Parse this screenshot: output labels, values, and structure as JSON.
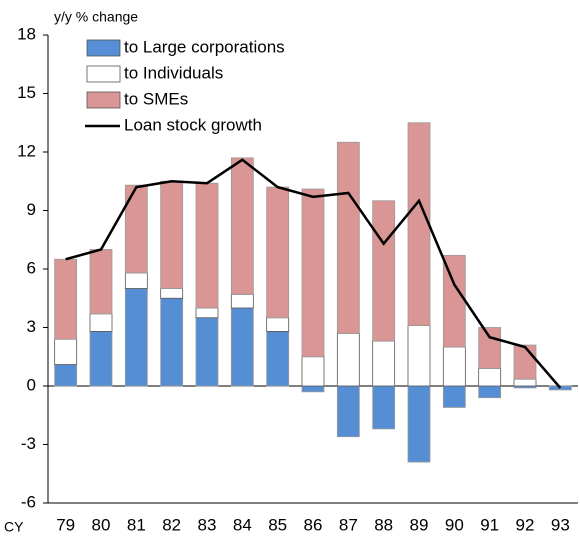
{
  "chart_data": {
    "type": "bar",
    "stacked": true,
    "y_label": "y/y % change",
    "x_label": "CY",
    "categories": [
      "79",
      "80",
      "81",
      "82",
      "83",
      "84",
      "85",
      "86",
      "87",
      "88",
      "89",
      "90",
      "91",
      "92",
      "93"
    ],
    "series": [
      {
        "name": "to Large corporations",
        "color": "#558ed5",
        "values": [
          1.1,
          2.8,
          5.0,
          4.5,
          3.5,
          4.0,
          2.8,
          -0.3,
          -2.6,
          -2.2,
          -3.9,
          -1.1,
          -0.6,
          -0.1,
          -0.2
        ]
      },
      {
        "name": "to Individuals",
        "color": "#ffffff",
        "values": [
          1.3,
          0.9,
          0.8,
          0.5,
          0.5,
          0.7,
          0.7,
          1.5,
          2.7,
          2.3,
          3.1,
          2.0,
          0.9,
          0.35,
          0
        ]
      },
      {
        "name": "to SMEs",
        "color": "#d99694",
        "values": [
          4.1,
          3.3,
          4.5,
          5.5,
          6.4,
          7.0,
          6.7,
          8.6,
          9.8,
          7.2,
          10.4,
          4.7,
          2.1,
          1.75,
          0
        ]
      },
      {
        "name": "Loan stock growth",
        "type": "line",
        "color": "#000000",
        "values": [
          6.5,
          7.0,
          10.2,
          10.5,
          10.4,
          11.6,
          10.2,
          9.7,
          9.9,
          7.3,
          9.5,
          5.2,
          2.5,
          2.0,
          -0.1
        ]
      }
    ],
    "ylim": [
      -6,
      18
    ],
    "yticks": [
      -6,
      -3,
      0,
      3,
      6,
      9,
      12,
      15,
      18
    ]
  }
}
